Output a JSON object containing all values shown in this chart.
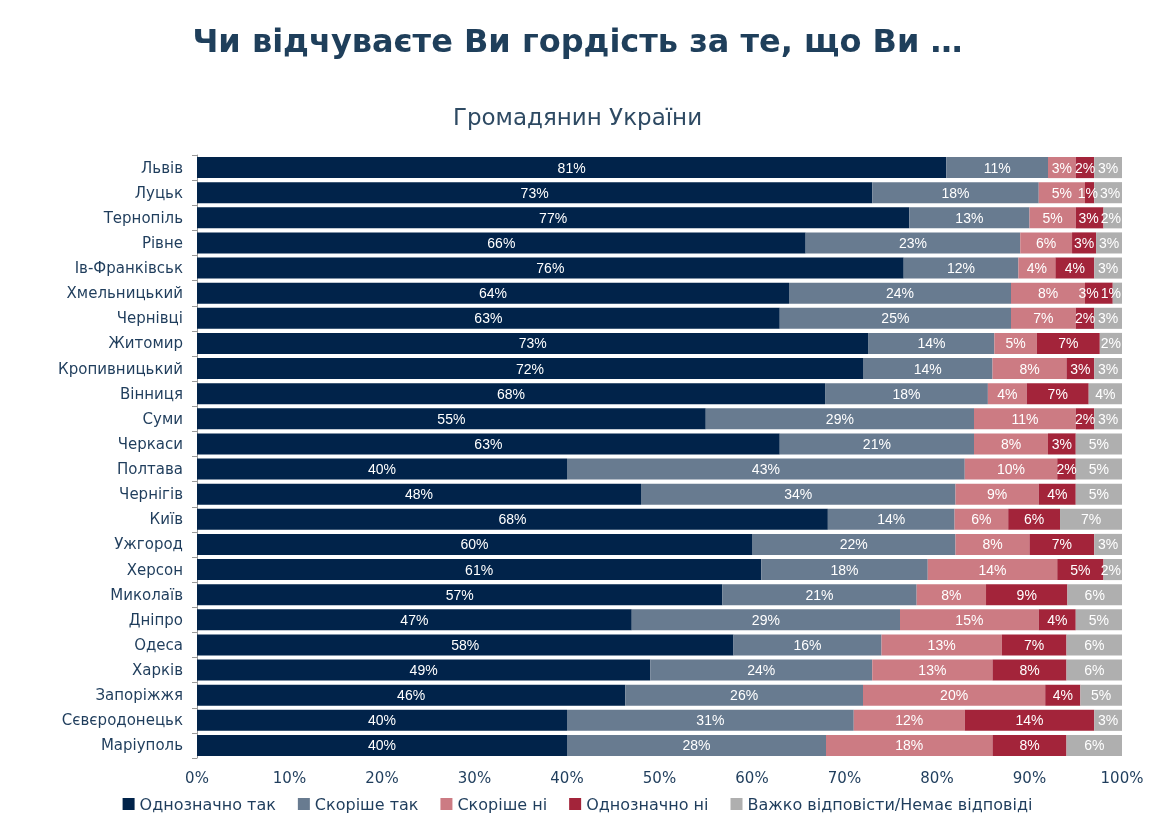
{
  "chart_data": {
    "type": "bar",
    "orientation": "horizontal",
    "stacked": true,
    "title": "Чи відчуваєте Ви гордість за те, що Ви …",
    "subtitle": "Громадянин України",
    "categories": [
      "Львів",
      "Луцьк",
      "Тернопіль",
      "Рівне",
      "Ів-Франківськ",
      "Хмельницький",
      "Чернівці",
      "Житомир",
      "Кропивницький",
      "Вінниця",
      "Суми",
      "Черкаси",
      "Полтава",
      "Чернігів",
      "Київ",
      "Ужгород",
      "Херсон",
      "Миколаїв",
      "Дніпро",
      "Одеса",
      "Харків",
      "Запоріжжя",
      "Сєвєродонецьк",
      "Маріуполь"
    ],
    "series": [
      {
        "name": "Однозначно так",
        "color": "#01234a",
        "values": [
          81,
          73,
          77,
          65.8,
          76.4,
          64,
          63,
          72.6,
          72,
          67.9,
          55,
          63,
          40,
          48,
          68.2,
          60,
          61,
          56.8,
          47,
          58,
          49,
          46.3,
          40,
          40
        ],
        "value_labels": [
          "81%",
          "73%",
          "77%",
          "66%",
          "76%",
          "64%",
          "63%",
          "73%",
          "72%",
          "68%",
          "55%",
          "63%",
          "40%",
          "48%",
          "68%",
          "60%",
          "61%",
          "57%",
          "47%",
          "58%",
          "49%",
          "46%",
          "40%",
          "40%"
        ]
      },
      {
        "name": "Скоріше так",
        "color": "#687b90",
        "values": [
          11,
          18,
          13,
          23.2,
          12.4,
          24,
          25,
          13.6,
          14,
          17.6,
          29,
          21,
          43,
          34,
          13.7,
          22,
          18,
          21,
          29,
          16,
          24,
          25.7,
          31,
          28
        ],
        "value_labels": [
          "11%",
          "18%",
          "13%",
          "23%",
          "12%",
          "24%",
          "25%",
          "14%",
          "14%",
          "18%",
          "29%",
          "21%",
          "43%",
          "34%",
          "14%",
          "22%",
          "18%",
          "21%",
          "29%",
          "16%",
          "24%",
          "26%",
          "31%",
          "28%"
        ]
      },
      {
        "name": "Скоріше ні",
        "color": "#cc7b83",
        "values": [
          3,
          5,
          5,
          5.6,
          4.0,
          8,
          7,
          4.6,
          8,
          4.2,
          11,
          8,
          10,
          9,
          5.8,
          8,
          14,
          7.5,
          15,
          13,
          13,
          19.7,
          12,
          18
        ],
        "value_labels": [
          "3%",
          "5%",
          "5%",
          "6%",
          "4%",
          "8%",
          "7%",
          "5%",
          "8%",
          "4%",
          "11%",
          "8%",
          "10%",
          "9%",
          "6%",
          "8%",
          "14%",
          "8%",
          "15%",
          "13%",
          "13%",
          "20%",
          "12%",
          "18%"
        ]
      },
      {
        "name": "Однозначно ні",
        "color": "#a3243a",
        "values": [
          2,
          1,
          3,
          2.6,
          4.2,
          3,
          2,
          6.8,
          3,
          6.7,
          2,
          3,
          2,
          4,
          5.6,
          7,
          5,
          8.8,
          4,
          7,
          8,
          3.8,
          14,
          8
        ],
        "value_labels": [
          "2%",
          "1%",
          "3%",
          "3%",
          "4%",
          "3%",
          "2%",
          "7%",
          "3%",
          "7%",
          "2%",
          "3%",
          "2%",
          "4%",
          "6%",
          "7%",
          "5%",
          "9%",
          "4%",
          "7%",
          "8%",
          "4%",
          "14%",
          "8%"
        ]
      },
      {
        "name": "Важко відповісти/Немає відповіді",
        "color": "#afafaf",
        "values": [
          3,
          3,
          2,
          2.8,
          3.0,
          1,
          3,
          2.4,
          3,
          3.6,
          3,
          5,
          5,
          5,
          6.7,
          3,
          2,
          5.9,
          5,
          6,
          6,
          4.5,
          3,
          6
        ],
        "value_labels": [
          "3%",
          "3%",
          "2%",
          "3%",
          "3%",
          "1%",
          "3%",
          "2%",
          "3%",
          "4%",
          "3%",
          "5%",
          "5%",
          "5%",
          "7%",
          "3%",
          "2%",
          "6%",
          "5%",
          "6%",
          "6%",
          "5%",
          "3%",
          "6%"
        ]
      }
    ],
    "xlim": [
      0,
      100
    ],
    "xticks": [
      {
        "value": 0,
        "label": "0%"
      },
      {
        "value": 10,
        "label": "10%"
      },
      {
        "value": 20,
        "label": "20%"
      },
      {
        "value": 30,
        "label": "30%"
      },
      {
        "value": 40,
        "label": "40%"
      },
      {
        "value": 50,
        "label": "50%"
      },
      {
        "value": 60,
        "label": "60%"
      },
      {
        "value": 70,
        "label": "70%"
      },
      {
        "value": 80,
        "label": "80%"
      },
      {
        "value": 90,
        "label": "90%"
      },
      {
        "value": 100,
        "label": "100%"
      }
    ],
    "grid": false,
    "legend": "bottom"
  }
}
